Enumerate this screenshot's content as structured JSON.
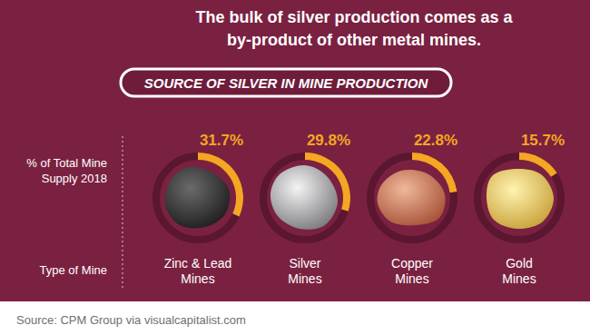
{
  "chart_data": {
    "type": "donut",
    "title": "The bulk of silver production comes as a by-product of other metal mines.",
    "subtitle": "SOURCE OF SILVER IN MINE PRODUCTION",
    "annotations": [
      "% of Total Mine Supply 2018",
      "Type of Mine"
    ],
    "source": "Source: CPM Group via visualcapitalist.com",
    "categories": [
      "Zinc & Lead Mines",
      "Silver Mines",
      "Copper Mines",
      "Gold Mines"
    ],
    "values": [
      31.7,
      29.8,
      22.8,
      15.7
    ],
    "value_labels": [
      "31.7%",
      "29.8%",
      "22.8%",
      "15.7%"
    ],
    "ylim": [
      0,
      100
    ],
    "color": "#f5a623",
    "data_labels": true,
    "tick_labels": false
  }
}
